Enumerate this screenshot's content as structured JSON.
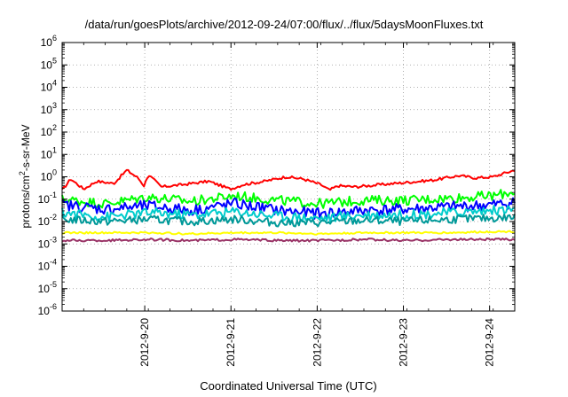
{
  "chart_data": {
    "type": "line",
    "title": "/data/run/goesPlots/archive/2012-09-24/07:00/flux/../flux/5daysMoonFluxes.txt",
    "xlabel": "Coordinated Universal Time (UTC)",
    "ylabel": {
      "prefix": "protons/cm",
      "sup": "2",
      "suffix": "-s-sr-MeV"
    },
    "yscale": "log",
    "ylim_exp": [
      -6,
      6
    ],
    "ytick_base": "10",
    "ytick_exps": [
      "-6",
      "-5",
      "-4",
      "-3",
      "-2",
      "-1",
      "0",
      "1",
      "2",
      "3",
      "4",
      "5",
      "6"
    ],
    "x_start": "2012-09-19 01:00",
    "x_end": "2012-09-24 07:00",
    "xtick_labels": [
      "2012-9-20",
      "2012-9-21",
      "2012-9-22",
      "2012-9-23",
      "2012-9-24"
    ],
    "grid": true,
    "colors": {
      "red": "#ff0000",
      "green": "#00ff00",
      "blue": "#0000ff",
      "cyan": "#00cccc",
      "teal": "#009999",
      "yellow": "#ffff00",
      "purple": "#993366"
    },
    "series": [
      {
        "color": "#ff0000",
        "x_days": [
          0,
          0.1,
          0.25,
          0.4,
          0.6,
          0.75,
          0.88,
          0.95,
          1.0,
          1.15,
          1.4,
          1.7,
          1.95,
          2.1,
          2.35,
          2.6,
          2.8,
          3.0,
          3.1,
          3.2,
          3.4,
          3.7,
          4.0,
          4.3,
          4.6,
          4.8,
          5.0,
          5.25
        ],
        "log10_y": [
          -0.6,
          -0.1,
          -0.55,
          -0.2,
          -0.3,
          0.3,
          -0.05,
          -0.4,
          0.1,
          -0.45,
          -0.35,
          -0.2,
          -0.55,
          -0.35,
          -0.2,
          0,
          -0.1,
          -0.35,
          -0.6,
          -0.4,
          -0.45,
          -0.35,
          -0.25,
          -0.15,
          0.05,
          -0.05,
          0.0,
          0.3
        ]
      },
      {
        "color": "#00ff00",
        "x_days": [
          0,
          0.5,
          1.0,
          1.5,
          2.0,
          2.5,
          3.0,
          3.5,
          4.0,
          4.5,
          5.0,
          5.25
        ],
        "log10_y": [
          -1.0,
          -1.2,
          -0.9,
          -1.1,
          -0.85,
          -1.05,
          -1.2,
          -1.05,
          -1.05,
          -0.95,
          -0.85,
          -0.65
        ]
      },
      {
        "color": "#0000ff",
        "x_days": [
          0,
          0.5,
          1.0,
          1.5,
          2.0,
          2.5,
          3.0,
          3.5,
          4.0,
          4.5,
          5.0,
          5.25
        ],
        "log10_y": [
          -1.25,
          -1.45,
          -1.3,
          -1.5,
          -1.2,
          -1.5,
          -1.65,
          -1.5,
          -1.45,
          -1.35,
          -1.25,
          -1.15
        ]
      },
      {
        "color": "#00cccc",
        "x_days": [
          0,
          0.5,
          1.0,
          1.5,
          2.0,
          2.5,
          3.0,
          3.5,
          4.0,
          4.5,
          5.0,
          5.25
        ],
        "log10_y": [
          -1.6,
          -1.8,
          -1.6,
          -1.7,
          -1.55,
          -1.75,
          -1.85,
          -1.7,
          -1.7,
          -1.6,
          -1.5,
          -1.45
        ]
      },
      {
        "color": "#009999",
        "x_days": [
          0,
          0.5,
          1.0,
          1.5,
          2.0,
          2.5,
          3.0,
          3.5,
          4.0,
          4.5,
          5.0,
          5.25
        ],
        "log10_y": [
          -1.9,
          -2.0,
          -1.9,
          -2.0,
          -1.9,
          -2.05,
          -2.05,
          -1.95,
          -2.0,
          -1.9,
          -1.85,
          -1.8
        ]
      },
      {
        "color": "#ffff00",
        "x_days": [
          0,
          0.5,
          1.0,
          1.5,
          2.0,
          2.5,
          3.0,
          3.5,
          4.0,
          4.5,
          5.0,
          5.25
        ],
        "log10_y": [
          -2.5,
          -2.5,
          -2.5,
          -2.55,
          -2.5,
          -2.5,
          -2.55,
          -2.5,
          -2.5,
          -2.5,
          -2.45,
          -2.45
        ]
      },
      {
        "color": "#993366",
        "x_days": [
          0,
          0.5,
          1.0,
          1.5,
          2.0,
          2.5,
          3.0,
          3.5,
          4.0,
          4.5,
          5.0,
          5.25
        ],
        "log10_y": [
          -2.85,
          -2.85,
          -2.8,
          -2.85,
          -2.8,
          -2.85,
          -2.85,
          -2.8,
          -2.85,
          -2.8,
          -2.8,
          -2.8
        ]
      }
    ]
  }
}
